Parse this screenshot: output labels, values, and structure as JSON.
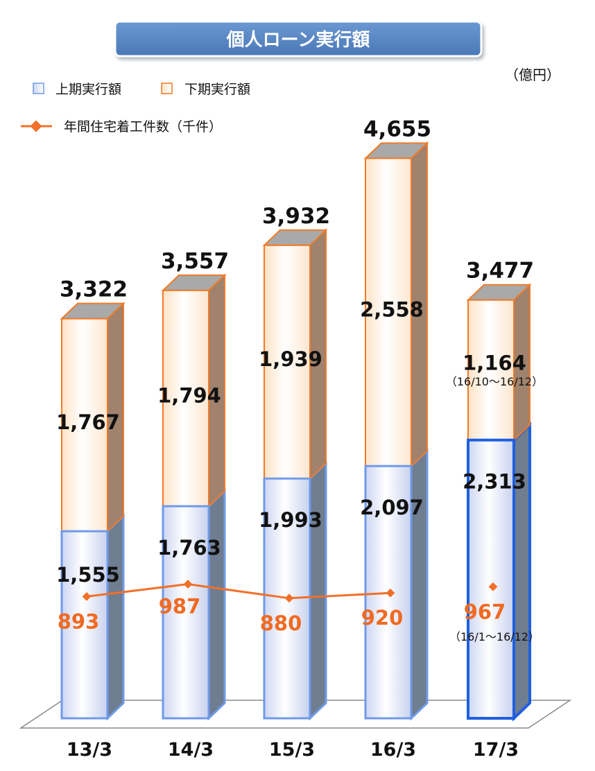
{
  "chart_data": {
    "type": "bar",
    "title": "個人ローン実行額",
    "unit": "（億円）",
    "categories": [
      "13/3",
      "14/3",
      "15/3",
      "16/3",
      "17/3"
    ],
    "series": [
      {
        "name": "上期実行額",
        "values": [
          1555,
          1763,
          1993,
          2097,
          2313
        ]
      },
      {
        "name": "下期実行額",
        "values": [
          1767,
          1794,
          1939,
          2558,
          1164
        ]
      }
    ],
    "totals": [
      3322,
      3557,
      3932,
      4655,
      3477
    ],
    "line_series": {
      "name": "年間住宅着工件数（千件）",
      "values": [
        893,
        987,
        880,
        920,
        967
      ]
    },
    "value_labels": {
      "upper": [
        "1,555",
        "1,763",
        "1,993",
        "2,097",
        "2,313"
      ],
      "lower": [
        "1,767",
        "1,794",
        "1,939",
        "2,558",
        "1,164"
      ],
      "totals": [
        "3,322",
        "3,557",
        "3,932",
        "4,655",
        "3,477"
      ],
      "line": [
        "893",
        "987",
        "880",
        "920",
        "967"
      ]
    },
    "annotations": {
      "lower_last_period": "（16/10〜16/12）",
      "line_last_period": "（16/1〜16/12）"
    },
    "legend_placement": "top-left",
    "ylim": [
      0,
      5000
    ],
    "grid": false,
    "colors": {
      "title_bg": "#5584c0",
      "upper_bar": "#eef1fb",
      "upper_border": "#6f9ae8",
      "upper_border_highlight": "#1e5fe0",
      "lower_bar": "#fff5ea",
      "lower_border": "#f07a28",
      "line": "#f0702a",
      "line_label": "#f06a22",
      "side_lower": "#a0826d",
      "side_upper": "#6f7d90"
    }
  }
}
